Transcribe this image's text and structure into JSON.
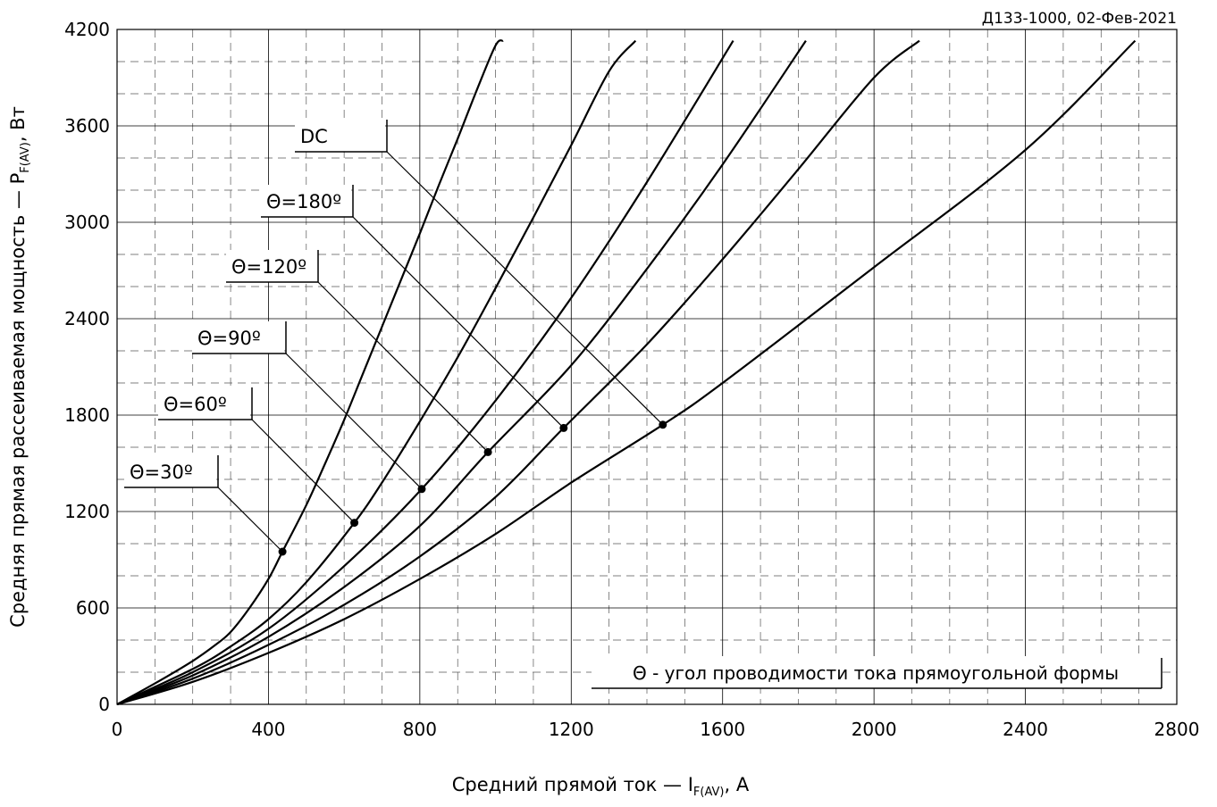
{
  "chart_data": {
    "type": "line",
    "title": "Д133-1000, 02-Фев-2021",
    "xlabel_main": "Средний прямой ток — I",
    "xlabel_sub": "F(AV)",
    "xlabel_tail": ", А",
    "ylabel_main": "Средняя прямая рассеиваемая мощность — P",
    "ylabel_sub": "F(AV)",
    "ylabel_tail": ", Вт",
    "xlim": [
      0,
      2800
    ],
    "ylim": [
      0,
      4200
    ],
    "x_ticks": [
      0,
      400,
      800,
      1200,
      1600,
      2000,
      2400,
      2800
    ],
    "y_ticks": [
      0,
      600,
      1200,
      1800,
      2400,
      3000,
      3600,
      4200
    ],
    "grid": true,
    "note": "Θ - угол проводимости тока прямоугольной формы",
    "series": [
      {
        "name": "Θ=30º",
        "x": [
          0,
          100,
          200,
          260,
          300,
          350,
          400,
          437,
          500,
          550,
          600,
          650,
          700,
          750,
          800,
          850,
          900,
          950,
          1000,
          1020
        ],
        "y": [
          0,
          130,
          270,
          370,
          450,
          600,
          780,
          950,
          1240,
          1500,
          1770,
          2060,
          2350,
          2640,
          2930,
          3230,
          3520,
          3820,
          4100,
          4130
        ],
        "marker": {
          "x": 437,
          "y": 950
        }
      },
      {
        "name": "Θ=60º",
        "x": [
          0,
          200,
          300,
          400,
          500,
          627,
          700,
          800,
          900,
          1000,
          1100,
          1200,
          1300,
          1370
        ],
        "y": [
          0,
          220,
          360,
          530,
          760,
          1130,
          1380,
          1760,
          2160,
          2590,
          3030,
          3480,
          3940,
          4130
        ],
        "marker": {
          "x": 627,
          "y": 1130
        }
      },
      {
        "name": "Θ=90º",
        "x": [
          0,
          200,
          400,
          600,
          805,
          1000,
          1200,
          1400,
          1628
        ],
        "y": [
          0,
          200,
          470,
          860,
          1340,
          1890,
          2530,
          3250,
          4130
        ],
        "marker": {
          "x": 805,
          "y": 1340
        }
      },
      {
        "name": "Θ=120º",
        "x": [
          0,
          200,
          400,
          600,
          800,
          980,
          1200,
          1400,
          1600,
          1820
        ],
        "y": [
          0,
          180,
          420,
          730,
          1110,
          1570,
          2110,
          2710,
          3360,
          4130
        ],
        "marker": {
          "x": 980,
          "y": 1570
        }
      },
      {
        "name": "Θ=180º",
        "x": [
          0,
          200,
          400,
          600,
          800,
          1000,
          1180,
          1400,
          1600,
          1800,
          2000,
          2120
        ],
        "y": [
          0,
          160,
          370,
          620,
          920,
          1290,
          1720,
          2240,
          2770,
          3330,
          3900,
          4130
        ],
        "marker": {
          "x": 1180,
          "y": 1720
        }
      },
      {
        "name": "DC",
        "x": [
          0,
          200,
          400,
          600,
          800,
          1000,
          1200,
          1442,
          1600,
          2000,
          2400,
          2690
        ],
        "y": [
          0,
          140,
          320,
          530,
          780,
          1060,
          1380,
          1740,
          2000,
          2720,
          3450,
          4130
        ],
        "marker": {
          "x": 1442,
          "y": 1740
        }
      }
    ],
    "callouts": [
      {
        "label": "DC",
        "series": 5
      },
      {
        "label": "Θ=180º",
        "series": 4
      },
      {
        "label": "Θ=120º",
        "series": 3
      },
      {
        "label": "Θ=90º",
        "series": 2
      },
      {
        "label": "Θ=60º",
        "series": 1
      },
      {
        "label": "Θ=30º",
        "series": 0
      }
    ]
  }
}
